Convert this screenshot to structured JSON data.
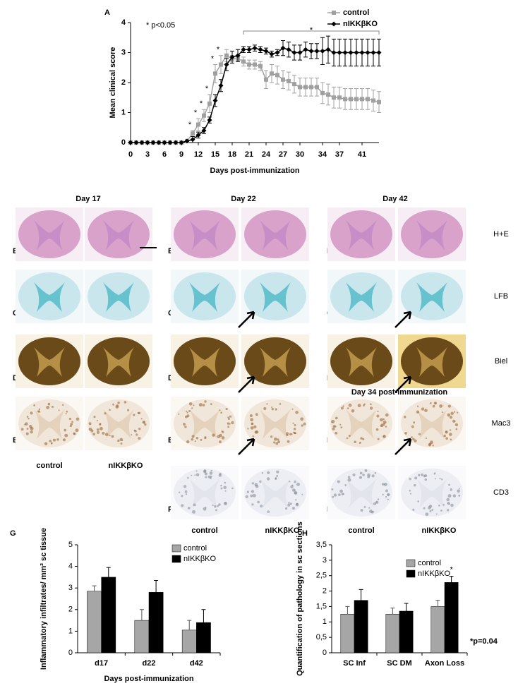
{
  "chart_data": [
    {
      "type": "line",
      "panel": "A",
      "ylabel": "Mean clinical score",
      "xlabel": "Days post-immunization",
      "note": "* p<0.05",
      "significance_mark": "*",
      "significance_days": [
        11,
        12,
        13,
        14,
        15,
        16
      ],
      "significance_range": [
        20,
        44
      ],
      "x": [
        0,
        1,
        2,
        3,
        4,
        5,
        6,
        7,
        8,
        9,
        10,
        11,
        12,
        13,
        14,
        15,
        16,
        17,
        18,
        19,
        20,
        21,
        22,
        23,
        24,
        25,
        26,
        27,
        28,
        29,
        30,
        31,
        32,
        33,
        34,
        35,
        36,
        37,
        38,
        39,
        40,
        41,
        42,
        43,
        44
      ],
      "xlim": [
        0,
        44
      ],
      "xticks": [
        0,
        3,
        6,
        9,
        12,
        15,
        18,
        21,
        24,
        27,
        30,
        34,
        37,
        41
      ],
      "ylim": [
        0,
        4
      ],
      "yticks": [
        0,
        1,
        2,
        3,
        4
      ],
      "series": [
        {
          "name": "control",
          "color": "#a0a0a0",
          "marker": "square",
          "values": [
            0,
            0,
            0,
            0,
            0,
            0,
            0,
            0,
            0,
            0,
            0.05,
            0.3,
            0.6,
            0.9,
            1.3,
            2.3,
            2.6,
            2.9,
            2.8,
            2.8,
            2.7,
            2.6,
            2.6,
            2.55,
            2.1,
            2.3,
            2.25,
            2.1,
            2.05,
            1.95,
            1.85,
            1.85,
            1.85,
            1.85,
            1.65,
            1.6,
            1.5,
            1.5,
            1.45,
            1.45,
            1.45,
            1.45,
            1.45,
            1.4,
            1.35
          ],
          "errors": [
            0,
            0,
            0,
            0,
            0,
            0,
            0,
            0,
            0,
            0,
            0,
            0.1,
            0.2,
            0.2,
            0.3,
            0.3,
            0.3,
            0.2,
            0.1,
            0.1,
            0.15,
            0.15,
            0.15,
            0.15,
            0.3,
            0.3,
            0.3,
            0.3,
            0.3,
            0.3,
            0.3,
            0.3,
            0.3,
            0.3,
            0.35,
            0.35,
            0.35,
            0.35,
            0.35,
            0.35,
            0.35,
            0.35,
            0.35,
            0.35,
            0.35
          ]
        },
        {
          "name": "nIKKβKO",
          "color": "#000000",
          "marker": "diamond",
          "values": [
            0,
            0,
            0,
            0,
            0,
            0,
            0,
            0,
            0,
            0,
            0.05,
            0.1,
            0.25,
            0.4,
            0.75,
            1.4,
            1.9,
            2.6,
            2.85,
            2.9,
            3.1,
            3.1,
            3.15,
            3.1,
            3.05,
            2.95,
            3.0,
            3.15,
            3.1,
            3.0,
            3.0,
            3.1,
            3.05,
            3.05,
            3.05,
            3.1,
            3.0,
            3.0,
            3.0,
            3.0,
            3.0,
            3.0,
            3.0,
            3.0,
            3.0
          ],
          "errors": [
            0,
            0,
            0,
            0,
            0,
            0,
            0,
            0,
            0,
            0,
            0,
            0.1,
            0.1,
            0.1,
            0.1,
            0.2,
            0.2,
            0.2,
            0.2,
            0.2,
            0.1,
            0.1,
            0.1,
            0.1,
            0.1,
            0.1,
            0.1,
            0.25,
            0.25,
            0.25,
            0.25,
            0.25,
            0.25,
            0.25,
            0.45,
            0.45,
            0.45,
            0.45,
            0.45,
            0.45,
            0.45,
            0.45,
            0.45,
            0.45,
            0.45
          ]
        }
      ]
    },
    {
      "type": "bar",
      "panel": "G",
      "ylabel": "Inflammatory infiltrates/ mm² sc tissue",
      "xlabel": "Days post-immunization",
      "categories": [
        "d17",
        "d22",
        "d42"
      ],
      "ylim": [
        0,
        5
      ],
      "yticks": [
        0,
        1,
        2,
        3,
        4,
        5
      ],
      "series": [
        {
          "name": "control",
          "color": "#a6a6a6",
          "values": [
            2.85,
            1.5,
            1.05
          ],
          "errors": [
            0.25,
            0.5,
            0.45
          ]
        },
        {
          "name": "nIKKβKO",
          "color": "#000000",
          "values": [
            3.5,
            2.8,
            1.4
          ],
          "errors": [
            0.45,
            0.55,
            0.6
          ]
        }
      ]
    },
    {
      "type": "bar",
      "panel": "H",
      "ylabel": "Quantification of pathology in sc sections",
      "xlabel": "Day 34 post-immunization",
      "categories": [
        "SC Inf",
        "SC DM",
        "Axon Loss"
      ],
      "ylim": [
        0,
        3.5
      ],
      "yticks": [
        0,
        {
          "value": 0.5,
          "label": "0,5"
        },
        1,
        {
          "value": 1.5,
          "label": "1,5"
        },
        2,
        {
          "value": 2.5,
          "label": "2,5"
        },
        3,
        {
          "value": 3.5,
          "label": "3,5"
        }
      ],
      "significance_mark": "*",
      "note": "*p=0.04",
      "series": [
        {
          "name": "control",
          "color": "#a6a6a6",
          "values": [
            1.25,
            1.25,
            1.5
          ],
          "errors": [
            0.25,
            0.2,
            0.2
          ]
        },
        {
          "name": "nIKKβKO",
          "color": "#000000",
          "values": [
            1.7,
            1.35,
            2.28
          ],
          "errors": [
            0.35,
            0.25,
            0.2
          ]
        }
      ]
    }
  ],
  "histology": {
    "stains": [
      "H+E",
      "LFB",
      "Biel",
      "Mac3",
      "CD3"
    ],
    "columns": [
      {
        "title": "Day 17",
        "rows": [
          "B",
          "C",
          "D",
          "E"
        ],
        "labels": [
          "control",
          "nIKKβKO"
        ]
      },
      {
        "title": "Day 22",
        "rows": [
          "B",
          "C",
          "D",
          "E",
          "F"
        ],
        "labels": [
          "control",
          "nIKKβKO"
        ]
      },
      {
        "title": "Day 42",
        "rows": [
          "B",
          "C",
          "D",
          "E",
          "F"
        ],
        "labels": [
          "control",
          "nIKKβKO"
        ]
      }
    ]
  }
}
